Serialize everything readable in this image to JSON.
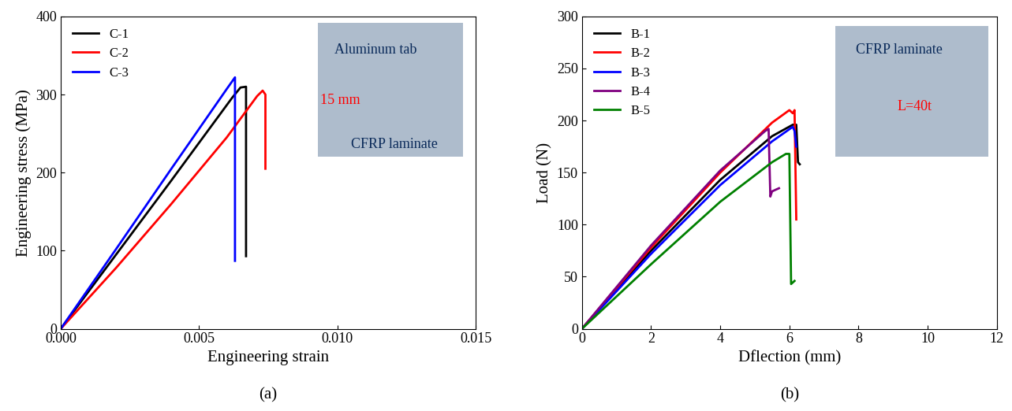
{
  "chart_data": [
    {
      "type": "line",
      "panel_label": "(a)",
      "x_label": "Engineering strain",
      "y_label": "Engineering stress (MPa)",
      "xlim": [
        0,
        0.015
      ],
      "xticks": [
        {
          "value": 0,
          "label": "0.000"
        },
        {
          "value": 0.005,
          "label": "0.005"
        },
        {
          "value": 0.01,
          "label": "0.010"
        },
        {
          "value": 0.015,
          "label": "0.015"
        }
      ],
      "ylim": [
        0,
        400
      ],
      "yticks": [
        0,
        100,
        200,
        300,
        400
      ],
      "legend": "upper left",
      "inset_texts": [
        "Aluminum tab",
        "15 mm",
        "CFRP laminate"
      ],
      "series": [
        {
          "name": "C-1",
          "color": "#000000",
          "x": [
            0,
            0.002,
            0.004,
            0.0062,
            0.0065,
            0.0067,
            0.0067
          ],
          "values": [
            0,
            95,
            190,
            296,
            309,
            310,
            93
          ]
        },
        {
          "name": "C-2",
          "color": "#ff0000",
          "x": [
            0,
            0.002,
            0.004,
            0.006,
            0.0071,
            0.0073,
            0.0074,
            0.0074
          ],
          "values": [
            0,
            78,
            160,
            245,
            298,
            305,
            300,
            205
          ]
        },
        {
          "name": "C-3",
          "color": "#0000ff",
          "x": [
            0,
            0.002,
            0.004,
            0.006,
            0.0063,
            0.0063
          ],
          "values": [
            0,
            102,
            205,
            307,
            322,
            87
          ]
        }
      ]
    },
    {
      "type": "line",
      "panel_label": "(b)",
      "x_label": "Dflection (mm)",
      "y_label": "Load (N)",
      "xlim": [
        0,
        12
      ],
      "xticks": [
        0,
        2,
        4,
        6,
        8,
        10,
        12
      ],
      "ylim": [
        0,
        300
      ],
      "yticks": [
        0,
        50,
        100,
        150,
        200,
        250,
        300
      ],
      "legend": "upper left",
      "inset_texts": [
        "CFRP laminate",
        "L=40t"
      ],
      "series": [
        {
          "name": "B-1",
          "color": "#000000",
          "x": [
            0,
            2,
            4,
            5.5,
            6.1,
            6.2,
            6.25,
            6.3
          ],
          "values": [
            0,
            75,
            143,
            185,
            196,
            196,
            160,
            158
          ]
        },
        {
          "name": "B-2",
          "color": "#ff0000",
          "x": [
            0,
            2,
            4,
            5.5,
            6.0,
            6.1,
            6.15,
            6.2
          ],
          "values": [
            0,
            78,
            150,
            198,
            210,
            207,
            210,
            105
          ]
        },
        {
          "name": "B-3",
          "color": "#0000ff",
          "x": [
            0,
            2,
            4,
            5.5,
            6.1,
            6.15,
            6.2
          ],
          "values": [
            0,
            72,
            138,
            180,
            194,
            190,
            175
          ]
        },
        {
          "name": "B-4",
          "color": "#800080",
          "x": [
            0,
            2,
            4,
            5.3,
            5.4,
            5.45,
            5.5,
            5.7
          ],
          "values": [
            0,
            80,
            152,
            190,
            192,
            127,
            132,
            135
          ]
        },
        {
          "name": "B-5",
          "color": "#008000",
          "x": [
            0,
            2,
            4,
            5.5,
            5.9,
            6.0,
            6.05,
            6.15
          ],
          "values": [
            0,
            62,
            122,
            160,
            168,
            168,
            43,
            46
          ]
        }
      ]
    }
  ]
}
